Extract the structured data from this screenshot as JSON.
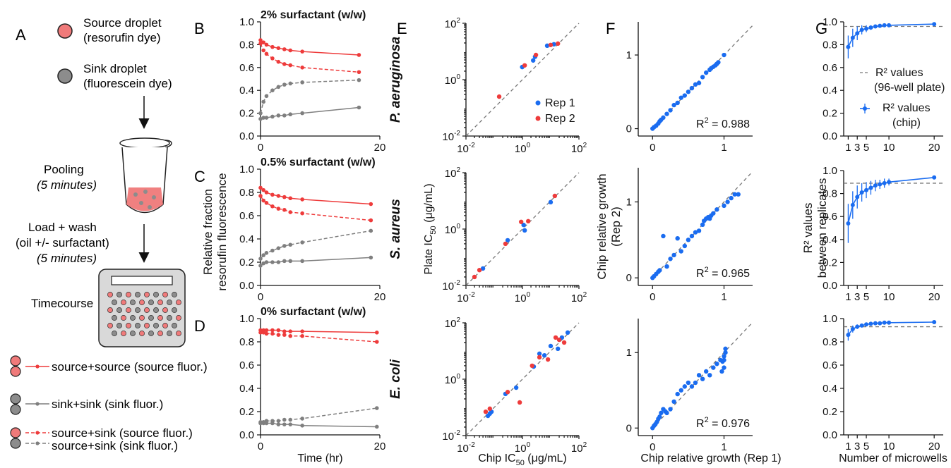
{
  "colors": {
    "source": "#ee3b3b",
    "sink": "#7f7f7f",
    "chip": "#1a6cf0",
    "rep2": "#ee3b3b",
    "ref": "#777777"
  },
  "panel_letters": {
    "A": "A",
    "B": "B",
    "C": "C",
    "D": "D",
    "E": "E",
    "F": "F",
    "G": "G"
  },
  "schematic": {
    "source_droplet": [
      "Source droplet",
      "(resorufin dye)"
    ],
    "sink_droplet": [
      "Sink droplet",
      "(fluorescein dye)"
    ],
    "pooling": "Pooling",
    "pooling_time": "(5 minutes)",
    "load_wash": "Load + wash",
    "oil": "(oil +/- surfactant)",
    "load_time": "(5 minutes)",
    "timecourse": "Timecourse",
    "legend": {
      "source_source": "source+source (source fluor.)",
      "sink_sink": "sink+sink (sink fluor.)",
      "source_sink_source": "source+sink (source fluor.)",
      "source_sink_sink": "source+sink (sink fluor.)"
    }
  },
  "chart_data": [
    {
      "panel": "B",
      "type": "line",
      "title": "2% surfactant (w/w)",
      "xlim": [
        0,
        20
      ],
      "ylim": [
        0,
        1.0
      ],
      "xticks": [
        "0",
        "20"
      ],
      "yticks": [
        "0.0",
        "0.2",
        "0.4",
        "0.6",
        "0.8",
        "1.0"
      ],
      "series": [
        {
          "name": "source+source (source fluor.)",
          "x": [
            0,
            0.5,
            1,
            2,
            3,
            4,
            5,
            7,
            16.5
          ],
          "y": [
            0.84,
            0.82,
            0.8,
            0.78,
            0.77,
            0.76,
            0.75,
            0.74,
            0.71
          ]
        },
        {
          "name": "source+sink (source fluor.)",
          "x": [
            0,
            0.5,
            1,
            2,
            3,
            4,
            5,
            7,
            16.5
          ],
          "y": [
            0.81,
            0.75,
            0.72,
            0.68,
            0.65,
            0.63,
            0.62,
            0.6,
            0.56
          ]
        },
        {
          "name": "source+sink (sink fluor.)",
          "x": [
            0,
            0.5,
            1,
            2,
            3,
            4,
            5,
            7,
            16.5
          ],
          "y": [
            0.2,
            0.3,
            0.35,
            0.4,
            0.43,
            0.45,
            0.46,
            0.47,
            0.49
          ]
        },
        {
          "name": "sink+sink (sink fluor.)",
          "x": [
            0,
            0.5,
            1,
            2,
            3,
            4,
            5,
            7,
            16.5
          ],
          "y": [
            0.15,
            0.16,
            0.16,
            0.17,
            0.18,
            0.18,
            0.19,
            0.2,
            0.25
          ]
        }
      ]
    },
    {
      "panel": "C",
      "type": "line",
      "title": "0.5% surfactant (w/w)",
      "xlim": [
        0,
        20
      ],
      "ylim": [
        0,
        1.0
      ],
      "xticks": [
        "0",
        "20"
      ],
      "yticks": [
        "0.0",
        "0.2",
        "0.4",
        "0.6",
        "0.8",
        "1.0"
      ],
      "ylabel": [
        "Relative fraction",
        "resorufin fluorescence"
      ],
      "series": [
        {
          "name": "source+source (source fluor.)",
          "x": [
            0,
            0.5,
            1,
            2,
            3,
            4,
            5,
            7,
            18.5
          ],
          "y": [
            0.84,
            0.82,
            0.8,
            0.78,
            0.77,
            0.76,
            0.75,
            0.74,
            0.7
          ]
        },
        {
          "name": "source+sink (source fluor.)",
          "x": [
            0,
            0.5,
            1,
            2,
            3,
            4,
            5,
            7,
            18.5
          ],
          "y": [
            0.77,
            0.73,
            0.71,
            0.68,
            0.66,
            0.65,
            0.63,
            0.62,
            0.56
          ]
        },
        {
          "name": "source+sink (sink fluor.)",
          "x": [
            0,
            0.5,
            1,
            2,
            3,
            4,
            5,
            7,
            18.5
          ],
          "y": [
            0.23,
            0.26,
            0.28,
            0.3,
            0.32,
            0.34,
            0.35,
            0.37,
            0.47
          ]
        },
        {
          "name": "sink+sink (sink fluor.)",
          "x": [
            0,
            0.5,
            1,
            2,
            3,
            4,
            5,
            7,
            18.5
          ],
          "y": [
            0.17,
            0.19,
            0.2,
            0.2,
            0.2,
            0.21,
            0.21,
            0.21,
            0.24
          ]
        }
      ]
    },
    {
      "panel": "D",
      "type": "line",
      "title": "0% surfactant (w/w)",
      "xlim": [
        0,
        20
      ],
      "ylim": [
        0,
        1.0
      ],
      "xticks": [
        "0",
        "20"
      ],
      "yticks": [
        "0.0",
        "0.2",
        "0.4",
        "0.6",
        "0.8",
        "1.0"
      ],
      "xlabel": "Time (hr)",
      "series": [
        {
          "name": "source+source (source fluor.)",
          "x": [
            0,
            0.5,
            1,
            2,
            3,
            4,
            5,
            7,
            19.5
          ],
          "y": [
            0.9,
            0.9,
            0.9,
            0.9,
            0.9,
            0.89,
            0.89,
            0.89,
            0.88
          ]
        },
        {
          "name": "source+sink (source fluor.)",
          "x": [
            0,
            0.5,
            1,
            2,
            3,
            4,
            5,
            7,
            19.5
          ],
          "y": [
            0.88,
            0.88,
            0.87,
            0.87,
            0.86,
            0.86,
            0.85,
            0.85,
            0.8
          ]
        },
        {
          "name": "source+sink (sink fluor.)",
          "x": [
            0,
            0.5,
            1,
            2,
            3,
            4,
            5,
            7,
            19.5
          ],
          "y": [
            0.11,
            0.11,
            0.12,
            0.12,
            0.12,
            0.13,
            0.13,
            0.14,
            0.23
          ]
        },
        {
          "name": "sink+sink (sink fluor.)",
          "x": [
            0,
            0.5,
            1,
            2,
            3,
            4,
            5,
            7,
            19.5
          ],
          "y": [
            0.1,
            0.1,
            0.1,
            0.1,
            0.09,
            0.09,
            0.09,
            0.08,
            0.07
          ]
        }
      ]
    },
    {
      "panel": "E1",
      "type": "scatter",
      "row_label": "P. aeruginosa",
      "xscale": "log",
      "yscale": "log",
      "xlim": [
        0.01,
        100
      ],
      "ylim": [
        0.01,
        100
      ],
      "xtick_base": "10",
      "xtick_exp": [
        "-2",
        "0",
        "2"
      ],
      "legend": [
        "Rep 1",
        "Rep 2"
      ],
      "legend_position": "lower-right",
      "series": [
        {
          "name": "Rep 1",
          "x": [
            0.98,
            2.4,
            2.8,
            7.5,
            13
          ],
          "y": [
            2.8,
            4.8,
            6.5,
            16,
            18
          ]
        },
        {
          "name": "Rep 2",
          "x": [
            0.15,
            1.2,
            3.0,
            10,
            18
          ],
          "y": [
            0.25,
            3.2,
            7.5,
            17,
            19
          ]
        }
      ]
    },
    {
      "panel": "E2",
      "type": "scatter",
      "row_label": "S. aureus",
      "xscale": "log",
      "yscale": "log",
      "xlim": [
        0.01,
        100
      ],
      "ylim": [
        0.01,
        100
      ],
      "xtick_base": "10",
      "xtick_exp": [
        "-2",
        "0",
        "2"
      ],
      "ylabel": "Plate IC",
      "ylabel_sub": "50",
      "ylabel_unit": " (μg/mL)",
      "series": [
        {
          "name": "Rep 1",
          "x": [
            0.04,
            0.3,
            1.1,
            1.2,
            10
          ],
          "y": [
            0.04,
            0.4,
            1.4,
            0.9,
            9
          ]
        },
        {
          "name": "Rep 2",
          "x": [
            0.02,
            0.03,
            0.25,
            0.9,
            1.6,
            14
          ],
          "y": [
            0.02,
            0.035,
            0.3,
            1.8,
            1.9,
            15
          ]
        }
      ]
    },
    {
      "panel": "E3",
      "type": "scatter",
      "row_label": "E. coli",
      "xscale": "log",
      "yscale": "log",
      "xlim": [
        0.01,
        100
      ],
      "ylim": [
        0.01,
        100
      ],
      "xtick_base": "10",
      "xtick_exp": [
        "-2",
        "0",
        "2"
      ],
      "xlabel": "Chip IC",
      "xlabel_sub": "50",
      "xlabel_unit": " (μg/mL)",
      "series": [
        {
          "name": "Rep 1",
          "x": [
            0.06,
            0.07,
            0.08,
            0.25,
            0.6,
            2.5,
            4,
            6,
            10,
            18,
            25,
            40
          ],
          "y": [
            0.05,
            0.06,
            0.07,
            0.3,
            0.5,
            2.8,
            8,
            7,
            15,
            12,
            30,
            45
          ]
        },
        {
          "name": "Rep 2",
          "x": [
            0.05,
            0.07,
            0.3,
            0.8,
            2.2,
            4,
            8,
            15,
            20,
            30
          ],
          "y": [
            0.07,
            0.09,
            0.35,
            0.15,
            3,
            6,
            5,
            30,
            25,
            20
          ]
        }
      ]
    },
    {
      "panel": "F1",
      "type": "scatter",
      "xlim": [
        -0.2,
        1.4
      ],
      "ylim": [
        -0.1,
        1.45
      ],
      "xticks": [
        0,
        1
      ],
      "yticks": [
        0,
        1
      ],
      "annotation_prefix": "R",
      "annotation_sup": "2",
      "annotation_value": " = 0.988",
      "series": [
        {
          "name": "Chip",
          "x": [
            0,
            0.02,
            0.05,
            0.08,
            0.1,
            0.12,
            0.15,
            0.2,
            0.25,
            0.3,
            0.35,
            0.4,
            0.45,
            0.5,
            0.55,
            0.6,
            0.65,
            0.7,
            0.75,
            0.8,
            0.82,
            0.85,
            0.88,
            0.9,
            0.92,
            1.0
          ],
          "y": [
            0,
            0.02,
            0.04,
            0.07,
            0.1,
            0.12,
            0.15,
            0.2,
            0.25,
            0.32,
            0.35,
            0.42,
            0.45,
            0.5,
            0.55,
            0.6,
            0.62,
            0.7,
            0.76,
            0.8,
            0.82,
            0.84,
            0.86,
            0.88,
            0.9,
            1.0
          ]
        }
      ]
    },
    {
      "panel": "F2",
      "type": "scatter",
      "xlim": [
        -0.2,
        1.4
      ],
      "ylim": [
        -0.1,
        1.45
      ],
      "xticks": [
        0,
        1
      ],
      "yticks": [
        0,
        1
      ],
      "ylabel": [
        "Chip relative growth",
        "(Rep 2)"
      ],
      "annotation_prefix": "R",
      "annotation_sup": "2",
      "annotation_value": " = 0.965",
      "series": [
        {
          "name": "Chip",
          "x": [
            0,
            0.02,
            0.05,
            0.08,
            0.1,
            0.15,
            0.2,
            0.25,
            0.3,
            0.35,
            0.4,
            0.45,
            0.5,
            0.55,
            0.6,
            0.65,
            0.7,
            0.72,
            0.75,
            0.78,
            0.8,
            0.82,
            0.85,
            0.9,
            1.0,
            1.05,
            1.1,
            1.15,
            1.2
          ],
          "y": [
            0,
            0.02,
            0.05,
            0.08,
            0.1,
            0.55,
            0.15,
            0.25,
            0.3,
            0.52,
            0.35,
            0.42,
            0.5,
            0.55,
            0.6,
            0.62,
            0.7,
            0.75,
            0.78,
            0.8,
            0.78,
            0.82,
            0.85,
            0.9,
            0.95,
            1.0,
            1.05,
            1.1,
            1.1
          ]
        }
      ]
    },
    {
      "panel": "F3",
      "type": "scatter",
      "xlim": [
        -0.2,
        1.4
      ],
      "ylim": [
        -0.1,
        1.45
      ],
      "xticks": [
        0,
        1
      ],
      "yticks": [
        0,
        1
      ],
      "xlabel": "Chip relative growth (Rep 1)",
      "annotation_prefix": "R",
      "annotation_sup": "2",
      "annotation_value": " = 0.976",
      "series": [
        {
          "name": "Chip",
          "x": [
            0,
            0.02,
            0.04,
            0.06,
            0.08,
            0.1,
            0.12,
            0.15,
            0.18,
            0.2,
            0.25,
            0.3,
            0.35,
            0.4,
            0.45,
            0.5,
            0.55,
            0.6,
            0.65,
            0.7,
            0.75,
            0.8,
            0.85,
            0.9,
            0.95,
            1.0,
            1.0,
            1.02,
            1.02,
            0.98,
            1.0,
            0.97
          ],
          "y": [
            0,
            0.03,
            0.05,
            0.08,
            0.12,
            0.15,
            0.2,
            0.25,
            0.22,
            0.2,
            0.25,
            0.35,
            0.45,
            0.5,
            0.55,
            0.6,
            0.55,
            0.6,
            0.7,
            0.65,
            0.75,
            0.7,
            0.8,
            0.85,
            0.9,
            0.9,
            0.95,
            1.0,
            1.05,
            0.88,
            0.8,
            0.75
          ]
        }
      ]
    },
    {
      "panel": "G1",
      "type": "line",
      "xlim": [
        0,
        22
      ],
      "ylim": [
        0,
        1.0
      ],
      "xticks": [
        "1",
        "3",
        "5",
        "10",
        "20"
      ],
      "yticks": [
        "0.0",
        "0.2",
        "0.4",
        "0.6",
        "0.8",
        "1.0"
      ],
      "reference": 0.96,
      "legend": [
        "R² values",
        "(96-well plate)",
        "R² values",
        "(chip)"
      ],
      "series": [
        {
          "name": "R² values (chip)",
          "x": [
            1,
            2,
            3,
            4,
            5,
            6,
            7,
            8,
            9,
            10,
            20
          ],
          "y": [
            0.78,
            0.86,
            0.9,
            0.93,
            0.94,
            0.95,
            0.96,
            0.965,
            0.97,
            0.97,
            0.98
          ],
          "err": [
            0.1,
            0.08,
            0.06,
            0.04,
            0.03,
            0.02,
            0.015,
            0.01,
            0.01,
            0.01,
            0.005
          ]
        }
      ]
    },
    {
      "panel": "G2",
      "type": "line",
      "xlim": [
        0,
        22
      ],
      "ylim": [
        0,
        1.0
      ],
      "xticks": [
        "1",
        "3",
        "5",
        "10",
        "20"
      ],
      "yticks": [
        "0.0",
        "0.2",
        "0.4",
        "0.6",
        "0.8",
        "1.0"
      ],
      "reference": 0.89,
      "ylabel": [
        "R² values",
        "between replicates"
      ],
      "series": [
        {
          "name": "R² values (chip)",
          "x": [
            1,
            2,
            3,
            4,
            5,
            6,
            7,
            8,
            9,
            10,
            20
          ],
          "y": [
            0.54,
            0.7,
            0.77,
            0.81,
            0.83,
            0.85,
            0.87,
            0.88,
            0.89,
            0.9,
            0.94
          ],
          "err": [
            0.17,
            0.12,
            0.1,
            0.08,
            0.07,
            0.06,
            0.05,
            0.04,
            0.04,
            0.03,
            0.01
          ]
        }
      ]
    },
    {
      "panel": "G3",
      "type": "line",
      "xlim": [
        0,
        22
      ],
      "ylim": [
        0,
        1.0
      ],
      "xticks": [
        "1",
        "3",
        "5",
        "10",
        "20"
      ],
      "yticks": [
        "0.0",
        "0.2",
        "0.4",
        "0.6",
        "0.8",
        "1.0"
      ],
      "reference": 0.93,
      "xlabel": "Number of microwells",
      "series": [
        {
          "name": "R² values (chip)",
          "x": [
            1,
            2,
            3,
            4,
            5,
            6,
            7,
            8,
            9,
            10,
            20
          ],
          "y": [
            0.86,
            0.91,
            0.93,
            0.94,
            0.95,
            0.955,
            0.96,
            0.96,
            0.965,
            0.965,
            0.97
          ],
          "err": [
            0.05,
            0.03,
            0.02,
            0.015,
            0.01,
            0.01,
            0.01,
            0.008,
            0.006,
            0.005,
            0.003
          ]
        }
      ]
    }
  ]
}
